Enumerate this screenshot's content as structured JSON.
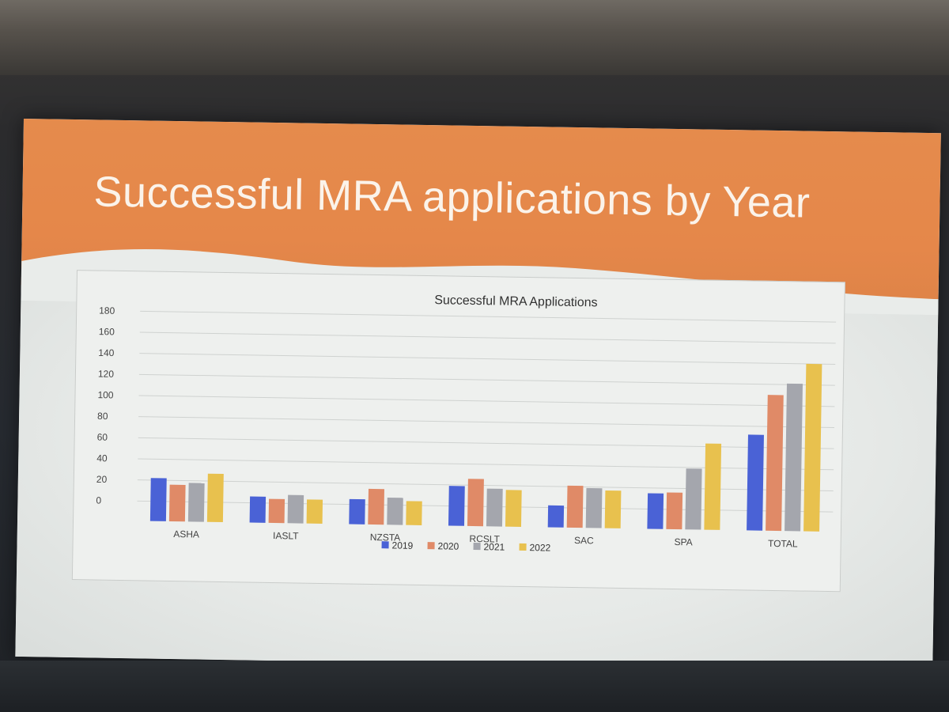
{
  "slide": {
    "title": "Successful MRA applications by Year"
  },
  "colors": {
    "header": "#e58b4c",
    "series": [
      "#4a62d6",
      "#e08a67",
      "#a4a6ad",
      "#e8c14e"
    ]
  },
  "chart_data": {
    "type": "bar",
    "title": "Successful MRA Applications",
    "categories": [
      "ASHA",
      "IASLT",
      "NZSTA",
      "RCSLT",
      "SAC",
      "SPA",
      "TOTAL"
    ],
    "series": [
      {
        "name": "2019",
        "values": [
          22,
          6,
          5,
          19,
          2,
          15,
          72
        ]
      },
      {
        "name": "2020",
        "values": [
          16,
          4,
          15,
          26,
          21,
          16,
          110
        ]
      },
      {
        "name": "2021",
        "values": [
          18,
          8,
          7,
          17,
          19,
          39,
          121
        ]
      },
      {
        "name": "2022",
        "values": [
          27,
          4,
          4,
          16,
          17,
          63,
          140
        ]
      }
    ],
    "ylim": [
      0,
      180
    ],
    "yticks": [
      0,
      20,
      40,
      60,
      80,
      100,
      120,
      140,
      160,
      180
    ],
    "grid": true,
    "legend_position": "bottom"
  }
}
